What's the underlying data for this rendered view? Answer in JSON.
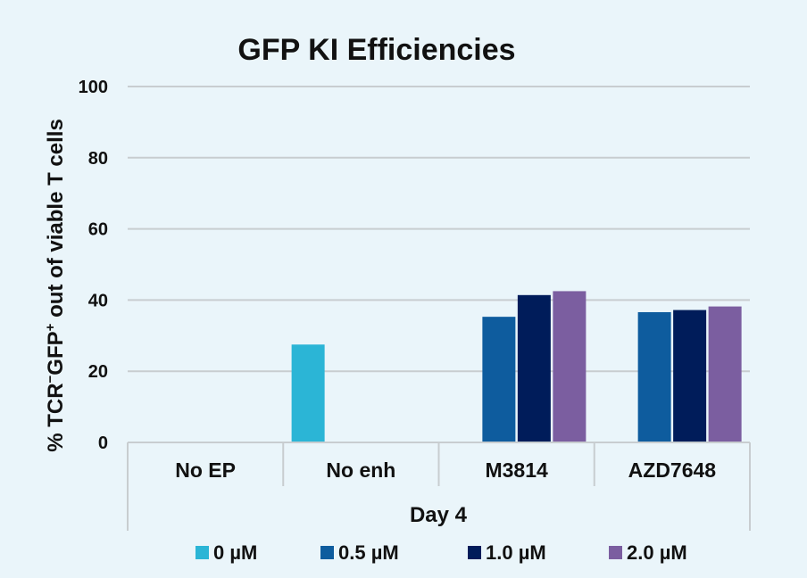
{
  "chart_data": {
    "type": "bar",
    "title": "GFP KI Efficiencies",
    "ylabel_main": "% TCR",
    "ylabel_sup1": "−",
    "ylabel_mid": "GFP",
    "ylabel_sup2": "+",
    "ylabel_tail": " out of viable T cells",
    "xlabel": "Day 4",
    "ylim": [
      0,
      100
    ],
    "yticks": [
      0,
      20,
      40,
      60,
      80,
      100
    ],
    "grid": true,
    "legend_position": "bottom",
    "categories": [
      "No EP",
      "No enh",
      "M3814",
      "AZD7648"
    ],
    "series": [
      {
        "name": "0 µM",
        "color": "#2bb5d6",
        "values": [
          null,
          27.5,
          null,
          null
        ]
      },
      {
        "name": "0.5 µM",
        "color": "#0e5c9e",
        "values": [
          null,
          null,
          35.3,
          36.6
        ]
      },
      {
        "name": "1.0 µM",
        "color": "#001c5a",
        "values": [
          null,
          null,
          41.4,
          37.2
        ]
      },
      {
        "name": "2.0 µM",
        "color": "#7b5ea0",
        "values": [
          null,
          null,
          42.5,
          38.2
        ]
      }
    ]
  }
}
